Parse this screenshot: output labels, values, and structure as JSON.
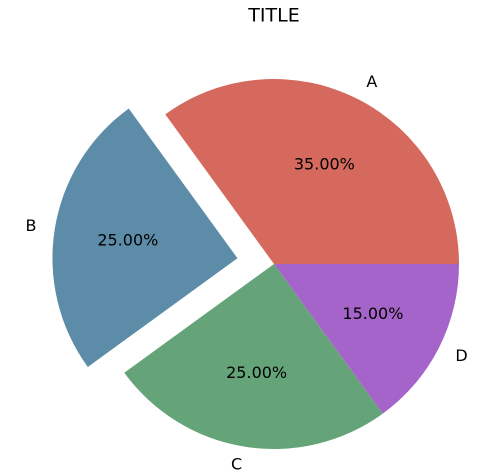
{
  "chart_data": {
    "type": "pie",
    "title": "TITLE",
    "categories": [
      "A",
      "B",
      "C",
      "D"
    ],
    "values": [
      35,
      25,
      25,
      15
    ],
    "value_labels": [
      "35.00%",
      "25.00%",
      "25.00%",
      "15.00%"
    ],
    "colors": [
      "#d5695d",
      "#5d8ca8",
      "#65a479",
      "#a564c9"
    ],
    "explode": [
      0,
      0.2,
      0,
      0
    ]
  }
}
